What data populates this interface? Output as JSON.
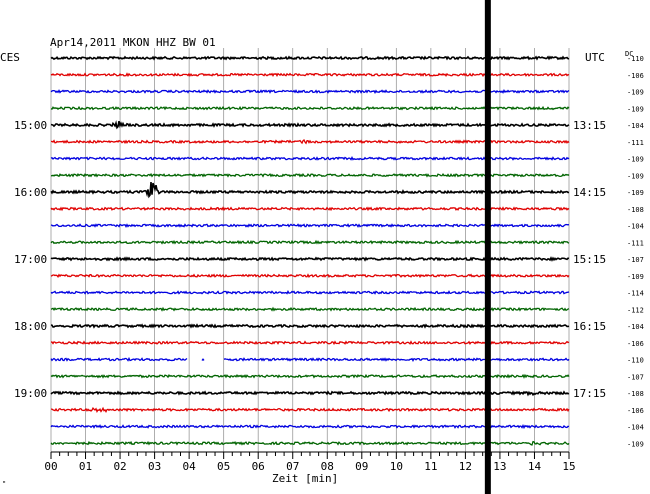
{
  "header": {
    "title": "Apr14,2011   MKON HHZ BW 01",
    "left_zone": "CES",
    "right_zone": "UTC",
    "dc_label": "DC"
  },
  "footer": {
    "xlabel": "Zeit [min]",
    "corner_mark": "\""
  },
  "chart_data": {
    "type": "helicorder",
    "title": "Apr14,2011   MKON HHZ BW 01",
    "xlabel": "Zeit [min]",
    "xlim": [
      0,
      15
    ],
    "x_ticks": [
      "00",
      "01",
      "02",
      "03",
      "04",
      "05",
      "06",
      "07",
      "08",
      "09",
      "10",
      "11",
      "12",
      "13",
      "14",
      "15"
    ],
    "traces_per_hour": 4,
    "trace_colors": [
      "#000000",
      "#e00000",
      "#0000e0",
      "#006400"
    ],
    "left_labels": [
      "",
      "",
      "",
      "",
      "15:00",
      "",
      "",
      "",
      "16:00",
      "",
      "",
      "",
      "17:00",
      "",
      "",
      "",
      "18:00",
      "",
      "",
      "",
      "19:00",
      "",
      "",
      ""
    ],
    "right_labels": [
      "",
      "",
      "",
      "",
      "13:15",
      "",
      "",
      "",
      "14:15",
      "",
      "",
      "",
      "15:15",
      "",
      "",
      "",
      "16:15",
      "",
      "",
      "",
      "17:15",
      "",
      "",
      ""
    ],
    "dc_offsets": [
      -110,
      -106,
      -109,
      -109,
      -104,
      -111,
      -109,
      -109,
      -109,
      -108,
      -104,
      -111,
      -107,
      -109,
      -114,
      -112,
      -104,
      -106,
      -110,
      -107,
      -108,
      -106,
      -104,
      -109
    ],
    "events": [
      {
        "trace": 4,
        "minute": 2.0,
        "amplitude": 0.6
      },
      {
        "trace": 5,
        "minute": 7.3,
        "amplitude": 0.35
      },
      {
        "trace": 8,
        "minute": 2.9,
        "amplitude": 2.4
      },
      {
        "trace": 21,
        "minute": 1.2,
        "amplitude": 0.4
      },
      {
        "trace": 21,
        "minute": 1.5,
        "amplitude": 0.4
      },
      {
        "trace": 23,
        "minute": 14.0,
        "amplitude": 0.4
      },
      {
        "trace": 20,
        "minute": 14.0,
        "amplitude": 0.5
      }
    ],
    "gaps": [
      {
        "trace": 18,
        "from": 3.95,
        "to": 4.35
      },
      {
        "trace": 18,
        "from": 4.45,
        "to": 5.0
      }
    ],
    "marker_minute": 12.65,
    "grid": true
  }
}
